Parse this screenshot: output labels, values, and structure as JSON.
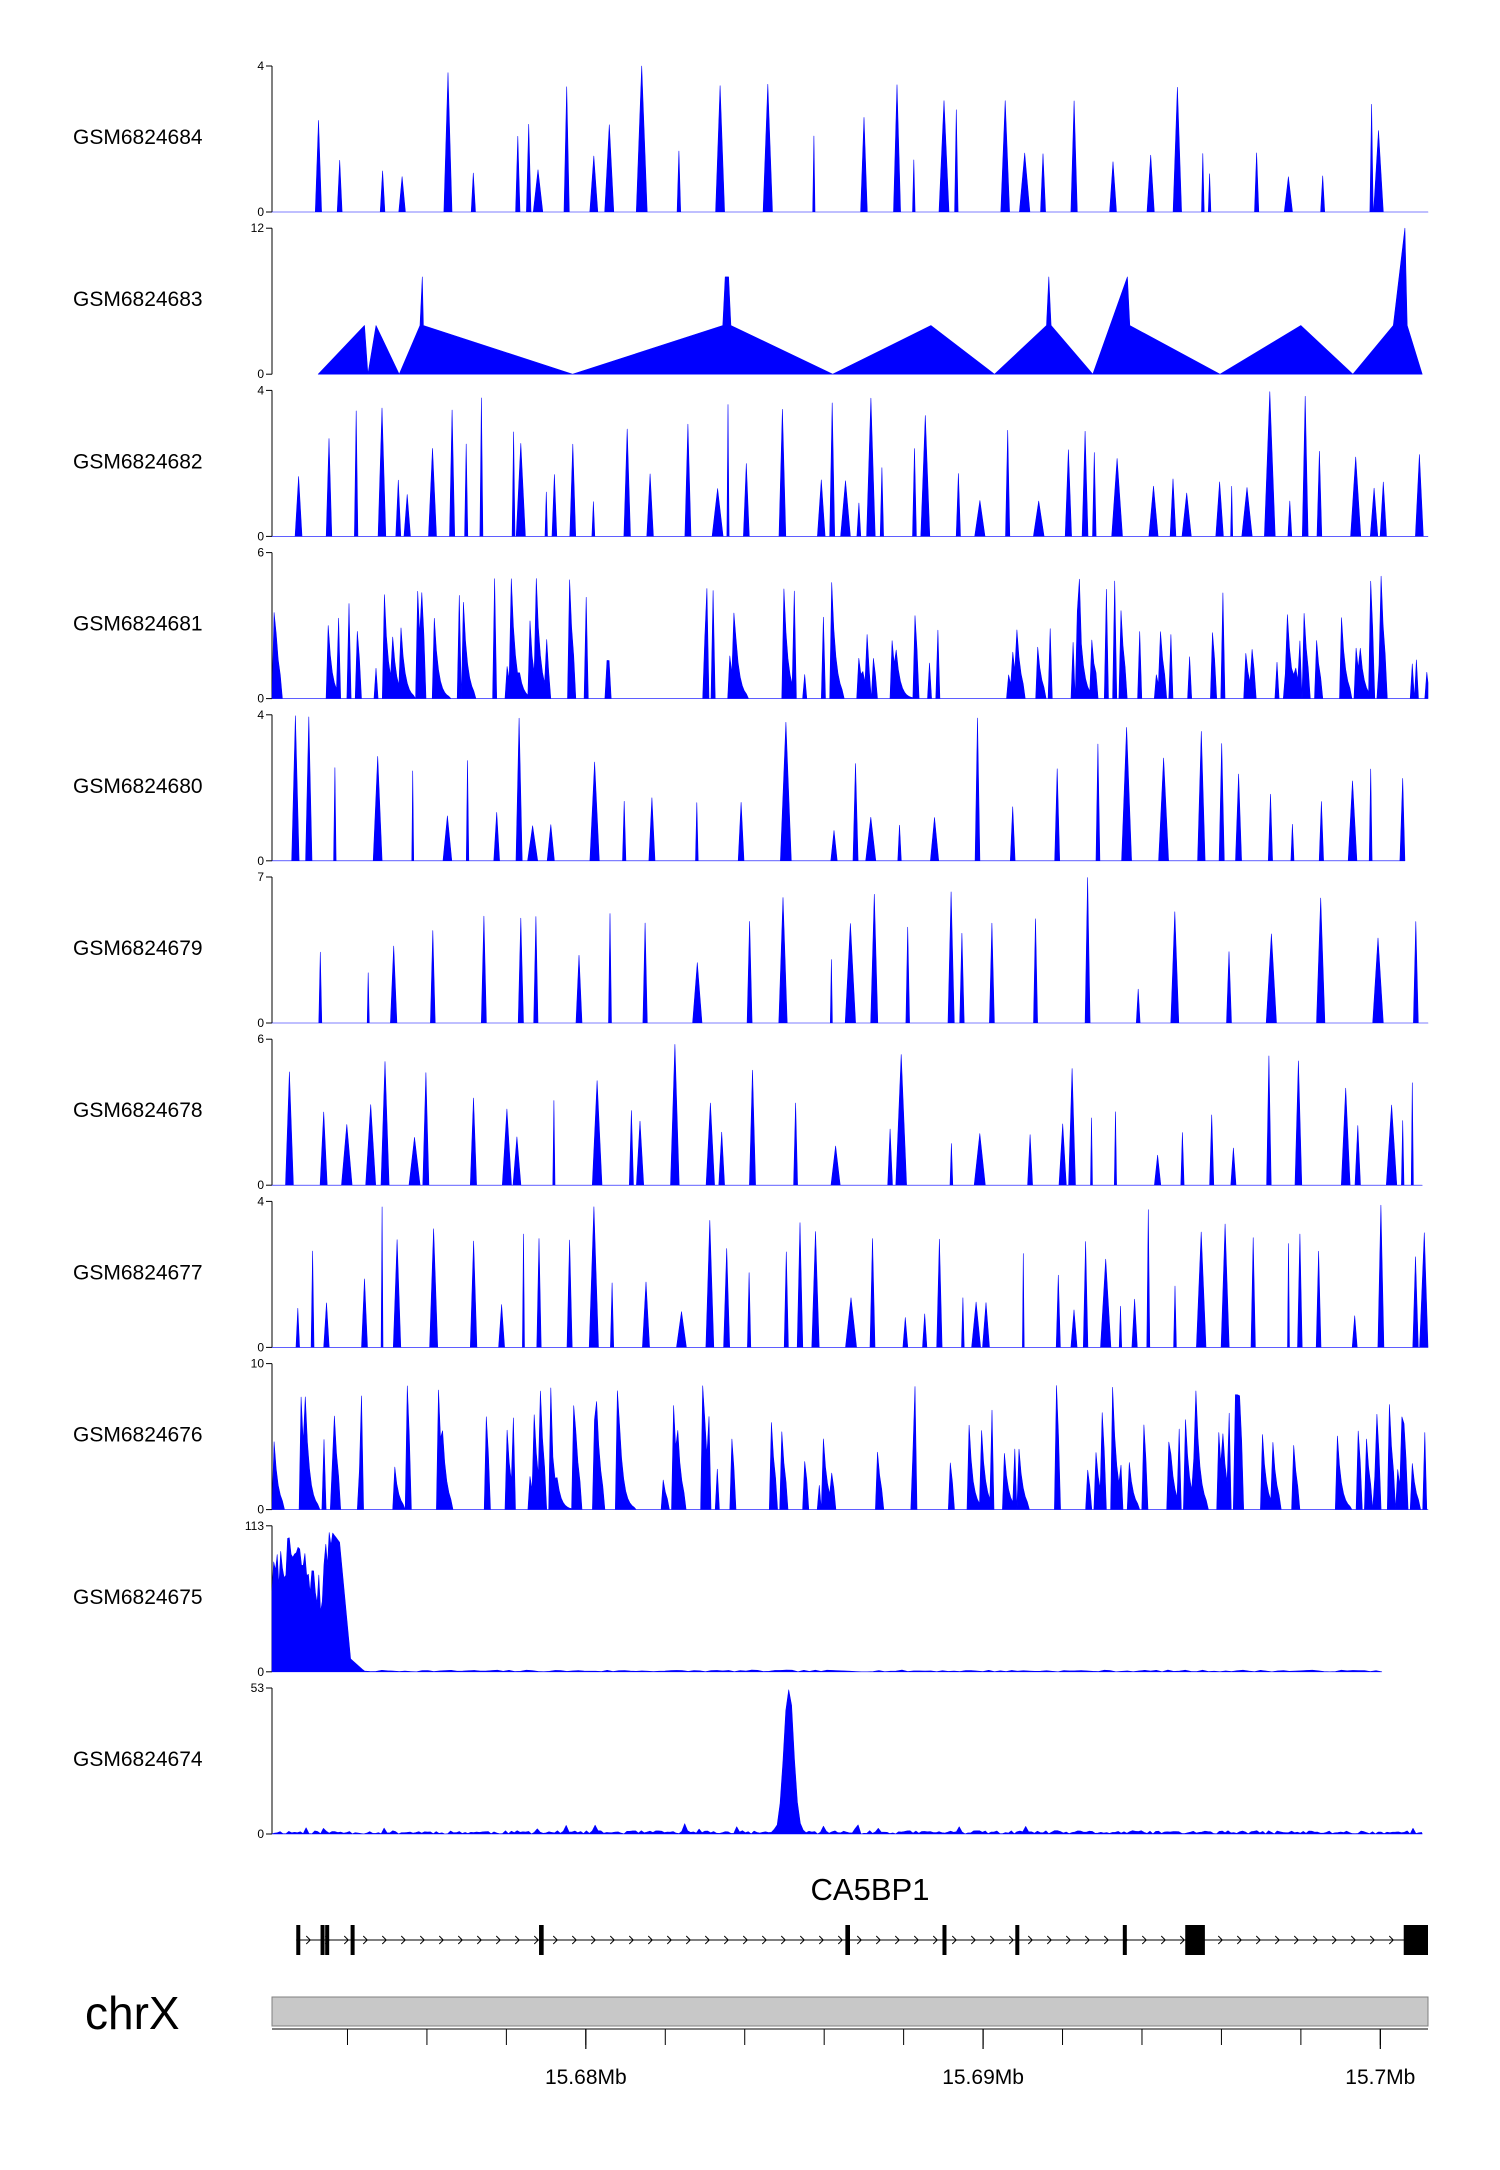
{
  "colors": {
    "signal": "#0000ff",
    "axis": "#000000",
    "ideogram": "#c8c8c8",
    "ideogram_edge": "#808080"
  },
  "chart_data": {
    "type": "area",
    "x_unit": "Mb",
    "x_range": [
      15.6721,
      15.7012
    ],
    "tracks": [
      {
        "name": "GSM6824684",
        "ymax": 4,
        "ytick_labels": [
          "0",
          "4"
        ],
        "seed": 684,
        "style": "sparse",
        "density": 0.075,
        "end": 1.0
      },
      {
        "name": "GSM6824683",
        "ymax": 12,
        "ytick_labels": [
          "0",
          "12"
        ],
        "style": "points",
        "points": [
          [
            0.04,
            0
          ],
          [
            0.08,
            4
          ],
          [
            0.083,
            0
          ],
          [
            0.09,
            4
          ],
          [
            0.11,
            0
          ],
          [
            0.128,
            4
          ],
          [
            0.13,
            8
          ],
          [
            0.131,
            4
          ],
          [
            0.26,
            0
          ],
          [
            0.39,
            4
          ],
          [
            0.392,
            8
          ],
          [
            0.395,
            8
          ],
          [
            0.397,
            4
          ],
          [
            0.485,
            0
          ],
          [
            0.57,
            4
          ],
          [
            0.625,
            0
          ],
          [
            0.67,
            4
          ],
          [
            0.672,
            8
          ],
          [
            0.674,
            4
          ],
          [
            0.71,
            0
          ],
          [
            0.74,
            8
          ],
          [
            0.742,
            4
          ],
          [
            0.82,
            0
          ],
          [
            0.89,
            4
          ],
          [
            0.935,
            0
          ],
          [
            0.97,
            4
          ],
          [
            0.98,
            12
          ],
          [
            0.982,
            4
          ],
          [
            0.995,
            0
          ]
        ]
      },
      {
        "name": "GSM6824682",
        "ymax": 4,
        "ytick_labels": [
          "0",
          "4"
        ],
        "seed": 682,
        "style": "sparse",
        "density": 0.11,
        "end": 1.0
      },
      {
        "name": "GSM6824681",
        "ymax": 6,
        "ytick_labels": [
          "0",
          "6"
        ],
        "seed": 681,
        "style": "dense",
        "density": 0.18,
        "end": 1.0
      },
      {
        "name": "GSM6824680",
        "ymax": 4,
        "ytick_labels": [
          "0",
          "4"
        ],
        "seed": 680,
        "style": "sparse",
        "density": 0.09,
        "end": 0.98
      },
      {
        "name": "GSM6824679",
        "ymax": 7,
        "ytick_labels": [
          "0",
          "7"
        ],
        "seed": 679,
        "style": "sparse",
        "density": 0.07,
        "end": 1.0
      },
      {
        "name": "GSM6824678",
        "ymax": 6,
        "ytick_labels": [
          "0",
          "6"
        ],
        "seed": 678,
        "style": "sparse",
        "density": 0.075,
        "end": 0.995
      },
      {
        "name": "GSM6824677",
        "ymax": 4,
        "ytick_labels": [
          "0",
          "4"
        ],
        "seed": 677,
        "style": "sparse",
        "density": 0.11,
        "end": 1.0
      },
      {
        "name": "GSM6824676",
        "ymax": 10,
        "ytick_labels": [
          "0",
          "10"
        ],
        "seed": 676,
        "style": "dense",
        "density": 0.14,
        "end": 1.0
      },
      {
        "name": "GSM6824675",
        "ymax": 113,
        "ytick_labels": [
          "0",
          "113"
        ],
        "style": "bigpeak",
        "peak_start": 0.0,
        "peak_end": 0.078,
        "end": 0.96
      },
      {
        "name": "GSM6824674",
        "ymax": 53,
        "ytick_labels": [
          "0",
          "53"
        ],
        "style": "singlepeak",
        "peak_x": 0.447,
        "peak_w": 0.006,
        "peak_val": 52,
        "end": 0.995
      }
    ],
    "gene": {
      "name": "CA5BP1",
      "strand": "+",
      "start": 0.021,
      "end": 1.0,
      "exons": [
        [
          0.021,
          0.024
        ],
        [
          0.042,
          0.044
        ],
        [
          0.046,
          0.049
        ],
        [
          0.068,
          0.071
        ],
        [
          0.231,
          0.235
        ],
        [
          0.496,
          0.5
        ],
        [
          0.58,
          0.583
        ],
        [
          0.643,
          0.646
        ],
        [
          0.736,
          0.739
        ],
        [
          0.79,
          0.807
        ],
        [
          0.979,
          1.0
        ]
      ]
    },
    "chromosome": "chrX",
    "x_ticks": [
      15.68,
      15.69,
      15.7
    ],
    "x_tick_labels": [
      "15.68Mb",
      "15.69Mb",
      "15.7Mb"
    ],
    "minor_tick_step": 0.002
  }
}
